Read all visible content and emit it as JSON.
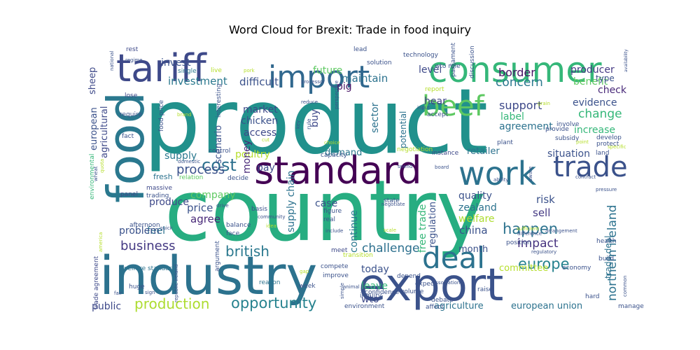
{
  "chart_data": {
    "type": "wordcloud",
    "title": "Word Cloud for Brexit: Trade in food inquiry",
    "background": "#ffffff",
    "colormap": "viridis",
    "words": [
      {
        "text": "product",
        "weight": 100,
        "color": "#21918c"
      },
      {
        "text": "country",
        "weight": 98,
        "color": "#27ad81"
      },
      {
        "text": "industry",
        "weight": 64,
        "color": "#2c728e"
      },
      {
        "text": "food",
        "weight": 58,
        "color": "#2a788e"
      },
      {
        "text": "standard",
        "weight": 48,
        "color": "#440154"
      },
      {
        "text": "export",
        "weight": 52,
        "color": "#3b528b"
      },
      {
        "text": "consumer",
        "weight": 44,
        "color": "#35b779"
      },
      {
        "text": "tariff",
        "weight": 44,
        "color": "#3e4989"
      },
      {
        "text": "import",
        "weight": 40,
        "color": "#31688e"
      },
      {
        "text": "work",
        "weight": 40,
        "color": "#2c728e"
      },
      {
        "text": "trade",
        "weight": 34,
        "color": "#3b528b"
      },
      {
        "text": "deal",
        "weight": 34,
        "color": "#2c728e"
      },
      {
        "text": "beef",
        "weight": 30,
        "color": "#5ec962"
      },
      {
        "text": "cost",
        "weight": 18,
        "color": "#2d708e"
      },
      {
        "text": "british",
        "weight": 16,
        "color": "#2a788e"
      },
      {
        "text": "opportunity",
        "weight": 16,
        "color": "#26828e"
      },
      {
        "text": "production",
        "weight": 16,
        "color": "#addc30"
      },
      {
        "text": "process",
        "weight": 14,
        "color": "#3b528b"
      },
      {
        "text": "concern",
        "weight": 14,
        "color": "#2a788e"
      },
      {
        "text": "border",
        "weight": 13,
        "color": "#471365"
      },
      {
        "text": "support",
        "weight": 13,
        "color": "#3e4989"
      },
      {
        "text": "change",
        "weight": 13,
        "color": "#35b779"
      },
      {
        "text": "happen",
        "weight": 14,
        "color": "#2c728e"
      },
      {
        "text": "impact",
        "weight": 13,
        "color": "#46327e"
      },
      {
        "text": "europe",
        "weight": 14,
        "color": "#26828e"
      },
      {
        "text": "challenge",
        "weight": 13,
        "color": "#2d708e"
      },
      {
        "text": "business",
        "weight": 13,
        "color": "#443983"
      },
      {
        "text": "investment",
        "weight": 11,
        "color": "#2a788e"
      },
      {
        "text": "difficult",
        "weight": 11,
        "color": "#3b528b"
      },
      {
        "text": "maintain",
        "weight": 11,
        "color": "#2c728e"
      },
      {
        "text": "invest",
        "weight": 10,
        "color": "#3b528b"
      },
      {
        "text": "future",
        "weight": 10,
        "color": "#5ec962"
      },
      {
        "text": "level",
        "weight": 10,
        "color": "#3e4989"
      },
      {
        "text": "producer",
        "weight": 10,
        "color": "#443983"
      },
      {
        "text": "benefit",
        "weight": 10,
        "color": "#5ec962"
      },
      {
        "text": "check",
        "weight": 10,
        "color": "#482878"
      },
      {
        "text": "evidence",
        "weight": 10,
        "color": "#3b528b"
      },
      {
        "text": "agreement",
        "weight": 10,
        "color": "#2c728e"
      },
      {
        "text": "increase",
        "weight": 10,
        "color": "#35b779"
      },
      {
        "text": "label",
        "weight": 10,
        "color": "#35b779"
      },
      {
        "text": "hear",
        "weight": 10,
        "color": "#414487"
      },
      {
        "text": "market",
        "weight": 10,
        "color": "#3e4989"
      },
      {
        "text": "chicken",
        "weight": 10,
        "color": "#3b528b"
      },
      {
        "text": "access",
        "weight": 10,
        "color": "#3e4989"
      },
      {
        "text": "poultry",
        "weight": 10,
        "color": "#b5de2b"
      },
      {
        "text": "pay",
        "weight": 10,
        "color": "#3e4989"
      },
      {
        "text": "money",
        "weight": 10,
        "color": "#482878"
      },
      {
        "text": "sector",
        "weight": 10,
        "color": "#2c728e"
      },
      {
        "text": "buy",
        "weight": 10,
        "color": "#3e4989"
      },
      {
        "text": "pig",
        "weight": 10,
        "color": "#471365"
      },
      {
        "text": "potential",
        "weight": 9,
        "color": "#2c728e"
      },
      {
        "text": "supply",
        "weight": 10,
        "color": "#2a788e"
      },
      {
        "text": "agricultural",
        "weight": 9,
        "color": "#3e4989"
      },
      {
        "text": "european",
        "weight": 9,
        "color": "#3b528b"
      },
      {
        "text": "sheep",
        "weight": 8,
        "color": "#3e4989"
      },
      {
        "text": "scenario",
        "weight": 9,
        "color": "#3b528b"
      },
      {
        "text": "situation",
        "weight": 10,
        "color": "#3b528b"
      },
      {
        "text": "retailer",
        "weight": 9,
        "color": "#2c728e"
      },
      {
        "text": "demand",
        "weight": 9,
        "color": "#2a788e"
      },
      {
        "text": "type",
        "weight": 9,
        "color": "#3b528b"
      },
      {
        "text": "quality",
        "weight": 10,
        "color": "#3b528b"
      },
      {
        "text": "risk",
        "weight": 10,
        "color": "#3b528b"
      },
      {
        "text": "sell",
        "weight": 10,
        "color": "#443983"
      },
      {
        "text": "zealand",
        "weight": 10,
        "color": "#2c728e"
      },
      {
        "text": "welfare",
        "weight": 10,
        "color": "#addc30"
      },
      {
        "text": "china",
        "weight": 10,
        "color": "#3b528b"
      },
      {
        "text": "northern ireland",
        "weight": 11,
        "color": "#2c728e"
      },
      {
        "text": "free trade",
        "weight": 9,
        "color": "#35b779"
      },
      {
        "text": "regulation",
        "weight": 9,
        "color": "#3b528b"
      },
      {
        "text": "continue",
        "weight": 9,
        "color": "#2a788e"
      },
      {
        "text": "supply chain",
        "weight": 9,
        "color": "#2c728e"
      },
      {
        "text": "case",
        "weight": 9,
        "color": "#3b528b"
      },
      {
        "text": "price",
        "weight": 10,
        "color": "#3b528b"
      },
      {
        "text": "agree",
        "weight": 10,
        "color": "#482878"
      },
      {
        "text": "company",
        "weight": 9,
        "color": "#5ec962"
      },
      {
        "text": "produce",
        "weight": 10,
        "color": "#3e4989"
      },
      {
        "text": "feel",
        "weight": 10,
        "color": "#2c728e"
      },
      {
        "text": "problem",
        "weight": 10,
        "color": "#3b528b"
      },
      {
        "text": "month",
        "weight": 9,
        "color": "#3b528b"
      },
      {
        "text": "committee",
        "weight": 9,
        "color": "#b5de2b"
      },
      {
        "text": "today",
        "weight": 9,
        "color": "#3b528b"
      },
      {
        "text": "leave",
        "weight": 9,
        "color": "#35b779"
      },
      {
        "text": "wto",
        "weight": 9,
        "color": "#3e4989"
      },
      {
        "text": "agriculture",
        "weight": 9,
        "color": "#2c728e"
      },
      {
        "text": "european union",
        "weight": 9,
        "color": "#2c728e"
      },
      {
        "text": "trade deal",
        "weight": 9,
        "color": "#2c728e"
      },
      {
        "text": "public",
        "weight": 9,
        "color": "#3e4989"
      },
      {
        "text": "fresh",
        "weight": 7,
        "color": "#2c728e"
      },
      {
        "text": "rest",
        "weight": 6,
        "color": "#3e4989"
      },
      {
        "text": "live",
        "weight": 6,
        "color": "#b5de2b"
      },
      {
        "text": "single",
        "weight": 6,
        "color": "#2a788e"
      },
      {
        "text": "lose",
        "weight": 6,
        "color": "#3e4989"
      },
      {
        "text": "require",
        "weight": 6,
        "color": "#3b528b"
      },
      {
        "text": "fact",
        "weight": 6,
        "color": "#3b528b"
      },
      {
        "text": "control",
        "weight": 6,
        "color": "#3b528b"
      },
      {
        "text": "massive",
        "weight": 6,
        "color": "#3e4989"
      },
      {
        "text": "trading",
        "weight": 6,
        "color": "#3b528b"
      },
      {
        "text": "afternoon",
        "weight": 6,
        "color": "#3b528b"
      },
      {
        "text": "environmental",
        "weight": 6,
        "color": "#35b779"
      },
      {
        "text": "panel",
        "weight": 6,
        "color": "#3e4989"
      },
      {
        "text": "relation",
        "weight": 6,
        "color": "#5ec962"
      },
      {
        "text": "decide",
        "weight": 6,
        "color": "#3b528b"
      },
      {
        "text": "capacity",
        "weight": 6,
        "color": "#3b528b"
      },
      {
        "text": "negotiation",
        "weight": 6,
        "color": "#b5de2b"
      },
      {
        "text": "instance",
        "weight": 6,
        "color": "#3e4989"
      },
      {
        "text": "basis",
        "weight": 6,
        "color": "#3b528b"
      },
      {
        "text": "figure",
        "weight": 6,
        "color": "#3b528b"
      },
      {
        "text": "real",
        "weight": 6,
        "color": "#3b528b"
      },
      {
        "text": "state",
        "weight": 6,
        "color": "#3b528b"
      },
      {
        "text": "balance",
        "weight": 6,
        "color": "#3b528b"
      },
      {
        "text": "face",
        "weight": 6,
        "color": "#3b528b"
      },
      {
        "text": "welfare standard",
        "weight": 6,
        "color": "#2c728e"
      },
      {
        "text": "trade agreement",
        "weight": 6,
        "color": "#3e4989"
      },
      {
        "text": "huge",
        "weight": 6,
        "color": "#3b528b"
      },
      {
        "text": "argument",
        "weight": 6,
        "color": "#3b528b"
      },
      {
        "text": "reason",
        "weight": 6,
        "color": "#2c728e"
      },
      {
        "text": "week",
        "weight": 6,
        "color": "#3b528b"
      },
      {
        "text": "compete",
        "weight": 6,
        "color": "#3b528b"
      },
      {
        "text": "improve",
        "weight": 6,
        "color": "#3b528b"
      },
      {
        "text": "transition",
        "weight": 5,
        "color": "#b5de2b"
      },
      {
        "text": "meet",
        "weight": 5,
        "color": "#3e4989"
      },
      {
        "text": "depend",
        "weight": 6,
        "color": "#3b528b"
      },
      {
        "text": "expect",
        "weight": 5,
        "color": "#3b528b"
      },
      {
        "text": "volume",
        "weight": 6,
        "color": "#3b528b"
      },
      {
        "text": "inquiry",
        "weight": 6,
        "color": "#3b528b"
      },
      {
        "text": "debate",
        "weight": 6,
        "color": "#3b528b"
      },
      {
        "text": "environment",
        "weight": 6,
        "color": "#3b528b"
      },
      {
        "text": "affect",
        "weight": 6,
        "color": "#3b528b"
      },
      {
        "text": "raise",
        "weight": 6,
        "color": "#3b528b"
      },
      {
        "text": "position",
        "weight": 6,
        "color": "#3b528b"
      },
      {
        "text": "economy",
        "weight": 6,
        "color": "#3b528b"
      },
      {
        "text": "manage",
        "weight": 6,
        "color": "#3b528b"
      },
      {
        "text": "build",
        "weight": 6,
        "color": "#3b528b"
      },
      {
        "text": "hard",
        "weight": 5,
        "color": "#3b528b"
      },
      {
        "text": "health",
        "weight": 6,
        "color": "#3b528b"
      },
      {
        "text": "land",
        "weight": 6,
        "color": "#3b528b"
      },
      {
        "text": "protect",
        "weight": 6,
        "color": "#3b528b"
      },
      {
        "text": "provide",
        "weight": 6,
        "color": "#3b528b"
      },
      {
        "text": "involve",
        "weight": 6,
        "color": "#3b528b"
      },
      {
        "text": "develop",
        "weight": 6,
        "color": "#3b528b"
      },
      {
        "text": "subsidy",
        "weight": 6,
        "color": "#3b528b"
      },
      {
        "text": "plant",
        "weight": 6,
        "color": "#3b528b"
      },
      {
        "text": "accept",
        "weight": 6,
        "color": "#3b528b"
      },
      {
        "text": "report",
        "weight": 6,
        "color": "#b5de2b"
      },
      {
        "text": "parliament",
        "weight": 6,
        "color": "#3b528b"
      },
      {
        "text": "discussion",
        "weight": 6,
        "color": "#3b528b"
      },
      {
        "text": "interesting",
        "weight": 6,
        "color": "#3b528b"
      },
      {
        "text": "food price",
        "weight": 6,
        "color": "#3b528b"
      },
      {
        "text": "wto rule",
        "weight": 6,
        "color": "#3b528b"
      },
      {
        "text": "solution",
        "weight": 5,
        "color": "#3b528b"
      },
      {
        "text": "technology",
        "weight": 5,
        "color": "#3b528b"
      },
      {
        "text": "lead",
        "weight": 5,
        "color": "#3b528b"
      },
      {
        "text": "national",
        "weight": 4,
        "color": "#3b528b"
      },
      {
        "text": "regime",
        "weight": 4,
        "color": "#3b528b"
      },
      {
        "text": "availability",
        "weight": 4,
        "color": "#3b528b"
      },
      {
        "text": "processor",
        "weight": 4,
        "color": "#3b528b"
      },
      {
        "text": "reduce",
        "weight": 4,
        "color": "#3b528b"
      },
      {
        "text": "input",
        "weight": 4,
        "color": "#3b528b"
      },
      {
        "text": "perspective",
        "weight": 4,
        "color": "#3b528b"
      },
      {
        "text": "key",
        "weight": 4,
        "color": "#3b528b"
      },
      {
        "text": "rule",
        "weight": 5,
        "color": "#3b528b"
      },
      {
        "text": "choice",
        "weight": 4,
        "color": "#b5de2b"
      },
      {
        "text": "grain",
        "weight": 4,
        "color": "#b5de2b"
      },
      {
        "text": "point",
        "weight": 4,
        "color": "#b5de2b"
      },
      {
        "text": "specific",
        "weight": 4,
        "color": "#b5de2b"
      },
      {
        "text": "domestic",
        "weight": 4,
        "color": "#3b528b"
      },
      {
        "text": "cut",
        "weight": 4,
        "color": "#b5de2b"
      },
      {
        "text": "spend",
        "weight": 4,
        "color": "#3b528b"
      },
      {
        "text": "board",
        "weight": 4,
        "color": "#3b528b"
      },
      {
        "text": "ability",
        "weight": 4,
        "color": "#3b528b"
      },
      {
        "text": "aware",
        "weight": 4,
        "color": "#3b528b"
      },
      {
        "text": "contract",
        "weight": 4,
        "color": "#3b528b"
      },
      {
        "text": "pressure",
        "weight": 4,
        "color": "#3b528b"
      },
      {
        "text": "wheat",
        "weight": 4,
        "color": "#3b528b"
      },
      {
        "text": "quota",
        "weight": 4,
        "color": "#b5de2b"
      },
      {
        "text": "drive",
        "weight": 4,
        "color": "#3b528b"
      },
      {
        "text": "community",
        "weight": 4,
        "color": "#3b528b"
      },
      {
        "text": "idea",
        "weight": 4,
        "color": "#b5de2b"
      },
      {
        "text": "negotiate",
        "weight": 4,
        "color": "#3b528b"
      },
      {
        "text": "scale",
        "weight": 4,
        "color": "#b5de2b"
      },
      {
        "text": "include",
        "weight": 4,
        "color": "#3b528b"
      },
      {
        "text": "association",
        "weight": 4,
        "color": "#3b528b"
      },
      {
        "text": "difference",
        "weight": 4,
        "color": "#3b528b"
      },
      {
        "text": "sufficient",
        "weight": 4,
        "color": "#b5de2b"
      },
      {
        "text": "arrangement",
        "weight": 4,
        "color": "#3b528b"
      },
      {
        "text": "regulatory",
        "weight": 4,
        "color": "#3b528b"
      },
      {
        "text": "quick",
        "weight": 4,
        "color": "#3b528b"
      },
      {
        "text": "america",
        "weight": 4,
        "color": "#b5de2b"
      },
      {
        "text": "fair",
        "weight": 4,
        "color": "#3b528b"
      },
      {
        "text": "sign",
        "weight": 4,
        "color": "#3b528b"
      },
      {
        "text": "republic ireland",
        "weight": 4,
        "color": "#3b528b"
      },
      {
        "text": "gap",
        "weight": 4,
        "color": "#b5de2b"
      },
      {
        "text": "animal",
        "weight": 4,
        "color": "#3b528b"
      },
      {
        "text": "simple",
        "weight": 4,
        "color": "#3b528b"
      },
      {
        "text": "confidence",
        "weight": 5,
        "color": "#3b528b"
      },
      {
        "text": "common",
        "weight": 4,
        "color": "#3b528b"
      },
      {
        "text": "pork",
        "weight": 4,
        "color": "#b5de2b"
      },
      {
        "text": "brand",
        "weight": 4,
        "color": "#b5de2b"
      }
    ]
  }
}
